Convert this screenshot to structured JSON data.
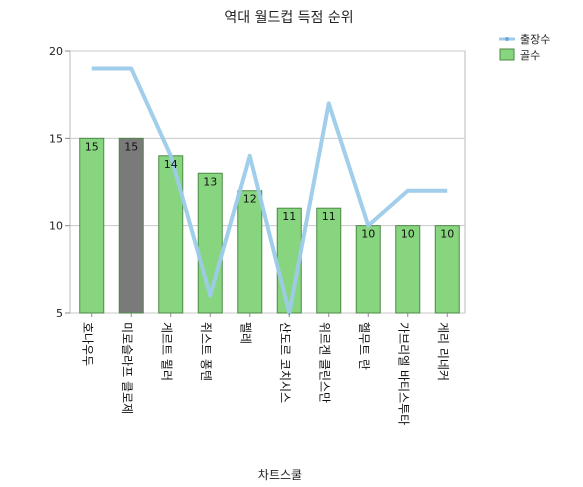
{
  "chart_data": {
    "type": "bar",
    "title": "역대 월드컵 득점 순위",
    "xlabel": "차트스쿨",
    "ylabel": "",
    "ylim": [
      5,
      20
    ],
    "yticks": [
      5,
      10,
      15,
      20
    ],
    "grid": true,
    "legend_position": "top-right",
    "categories": [
      "호나우두",
      "미로슬라프 클로제",
      "게르트 뮐러",
      "쥐스트 퐁텐",
      "펠레",
      "산도르 코치시스",
      "위르겐 클린스만",
      "헬무트 란",
      "가브리엘 바티스투타",
      "게리 리네커"
    ],
    "series": [
      {
        "name": "골수",
        "type": "bar",
        "color": "#88d57f",
        "highlight_color": "#7a7a7a",
        "highlight_index": 1,
        "values": [
          15,
          15,
          14,
          13,
          12,
          11,
          11,
          10,
          10,
          10
        ]
      },
      {
        "name": "출장수",
        "type": "line",
        "color": "#9ccbea",
        "values": [
          19,
          19,
          14,
          6,
          14,
          5,
          17,
          10,
          12,
          12
        ]
      }
    ]
  }
}
